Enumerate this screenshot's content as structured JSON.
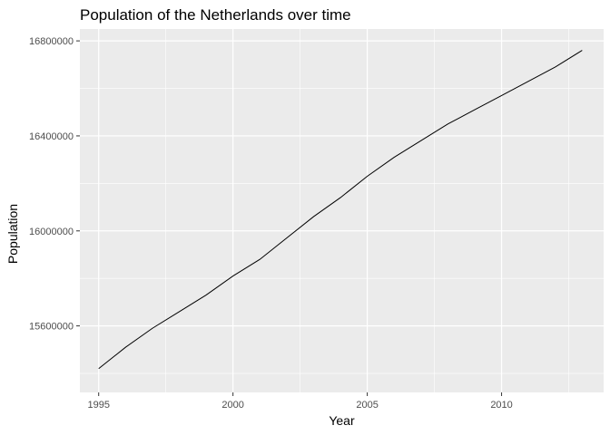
{
  "chart_data": {
    "type": "line",
    "title": "Population of the Netherlands over time",
    "xlabel": "Year",
    "ylabel": "Population",
    "xlim": [
      1994.3,
      2013.8
    ],
    "ylim": [
      15320000,
      16850000
    ],
    "x_ticks": [
      1995,
      2000,
      2005,
      2010
    ],
    "x_tick_labels": [
      "1995",
      "2000",
      "2005",
      "2010"
    ],
    "y_ticks": [
      15600000,
      16000000,
      16400000,
      16800000
    ],
    "y_tick_labels": [
      "15600000",
      "16000000",
      "16400000",
      "16800000"
    ],
    "grid": true,
    "colors": {
      "panel": "#ebebeb",
      "grid": "#ffffff",
      "line": "#000000",
      "tick_text": "#4d4d4d"
    },
    "series": [
      {
        "x": [
          1995,
          1996,
          1997,
          1998,
          1999,
          2000,
          2001,
          2002,
          2003,
          2004,
          2005,
          2006,
          2007,
          2008,
          2009,
          2010,
          2011,
          2012,
          2013
        ],
        "values": [
          15420000,
          15510000,
          15590000,
          15660000,
          15730000,
          15810000,
          15880000,
          15970000,
          16060000,
          16140000,
          16230000,
          16310000,
          16380000,
          16450000,
          16510000,
          16570000,
          16630000,
          16690000,
          16760000
        ]
      }
    ]
  }
}
